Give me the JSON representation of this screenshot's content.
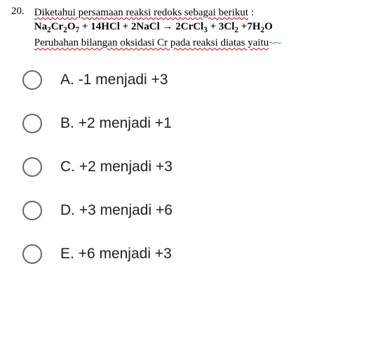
{
  "question": {
    "number": "20.",
    "line1_part1": "Diketahui persamaan reaksi redoks sebagai berikut",
    "line1_part2": " :",
    "equation": {
      "lhs1": "Na",
      "lhs1_sub1": "2",
      "lhs1_mid": "Cr",
      "lhs1_sub2": "2",
      "lhs1_end": "O",
      "lhs1_sub3": "7",
      "plus1": " + 14HCl + 2NaCl → 2CrCl",
      "rhs1_sub1": "3",
      "plus2": " + 3Cl",
      "rhs2_sub1": "2",
      "plus3": " +7H",
      "rhs3_sub1": "2",
      "rhs3_end": "O"
    },
    "line3": "Perubahan bilangan oksidasi Cr pada reaksi diatas yaitu",
    "trailing_squiggle": "～～"
  },
  "options": [
    {
      "label": "A. -1 menjadi +3"
    },
    {
      "label": "B. +2 menjadi +1"
    },
    {
      "label": "C. +2 menjadi +3"
    },
    {
      "label": "D. +3 menjadi +6"
    },
    {
      "label": "E. +6 menjadi +3"
    }
  ],
  "styling": {
    "body_width": 559,
    "body_height": 503,
    "background": "#ffffff",
    "question_font": "Times New Roman",
    "question_fontsize": 15,
    "option_font": "Arial",
    "option_fontsize": 21,
    "radio_size": 28,
    "radio_border": "#666666",
    "underline_color": "#c00000",
    "squiggle_color": "#0070c0",
    "text_color": "#212121"
  }
}
